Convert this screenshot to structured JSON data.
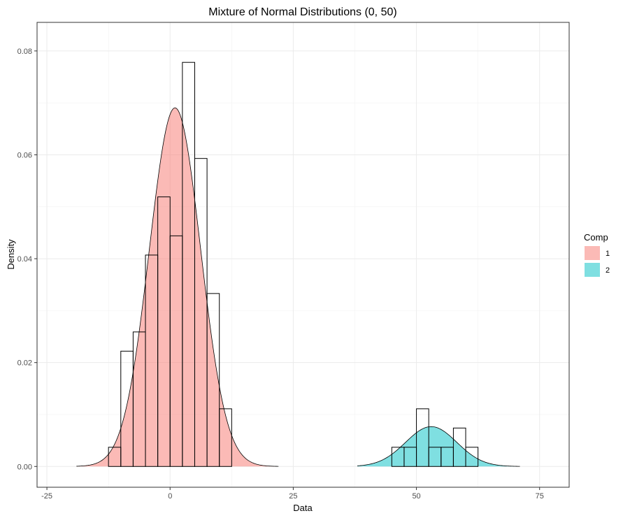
{
  "chart_data": {
    "type": "histogram",
    "title": "Mixture of Normal Distributions (0, 50)",
    "xlabel": "Data",
    "ylabel": "Density",
    "xlim": [
      -27,
      81
    ],
    "ylim": [
      -0.004,
      0.0855
    ],
    "x_ticks": [
      {
        "value": -25,
        "label": "-25"
      },
      {
        "value": 0,
        "label": "0"
      },
      {
        "value": 25,
        "label": "25"
      },
      {
        "value": 50,
        "label": "50"
      },
      {
        "value": 75,
        "label": "75"
      }
    ],
    "y_ticks": [
      {
        "value": 0.0,
        "label": "0.00"
      },
      {
        "value": 0.02,
        "label": "0.02"
      },
      {
        "value": 0.04,
        "label": "0.04"
      },
      {
        "value": 0.06,
        "label": "0.06"
      },
      {
        "value": 0.08,
        "label": "0.08"
      }
    ],
    "grid": true,
    "histogram": {
      "bin_width": 2.5,
      "bins": [
        {
          "x0": -12.5,
          "x1": -10.0,
          "density": 0.0037
        },
        {
          "x0": -10.0,
          "x1": -7.5,
          "density": 0.0222
        },
        {
          "x0": -7.5,
          "x1": -5.0,
          "density": 0.0259
        },
        {
          "x0": -5.0,
          "x1": -2.5,
          "density": 0.0407
        },
        {
          "x0": -2.5,
          "x1": 0.0,
          "density": 0.0519
        },
        {
          "x0": 0.0,
          "x1": 2.5,
          "density": 0.0444
        },
        {
          "x0": 2.5,
          "x1": 5.0,
          "density": 0.0778
        },
        {
          "x0": 5.0,
          "x1": 7.5,
          "density": 0.0593
        },
        {
          "x0": 7.5,
          "x1": 10.0,
          "density": 0.0333
        },
        {
          "x0": 10.0,
          "x1": 12.5,
          "density": 0.0111
        },
        {
          "x0": 45.0,
          "x1": 47.5,
          "density": 0.0037
        },
        {
          "x0": 47.5,
          "x1": 50.0,
          "density": 0.0037
        },
        {
          "x0": 50.0,
          "x1": 52.5,
          "density": 0.0111
        },
        {
          "x0": 52.5,
          "x1": 55.0,
          "density": 0.0037
        },
        {
          "x0": 55.0,
          "x1": 57.5,
          "density": 0.0037
        },
        {
          "x0": 57.5,
          "x1": 60.0,
          "density": 0.0074
        },
        {
          "x0": 60.0,
          "x1": 62.5,
          "density": 0.0037
        }
      ]
    },
    "components": [
      {
        "name": "1",
        "color": "#F8766D",
        "fill_alpha": 0.5,
        "weight": 0.9,
        "mean": 1.0,
        "sd": 5.2,
        "x_range": [
          -19,
          22
        ]
      },
      {
        "name": "2",
        "color": "#00BFC4",
        "fill_alpha": 0.5,
        "weight": 0.1,
        "mean": 53.0,
        "sd": 5.2,
        "x_range": [
          38,
          71
        ]
      }
    ],
    "legend": {
      "title": "Comp",
      "placement": "right"
    }
  }
}
